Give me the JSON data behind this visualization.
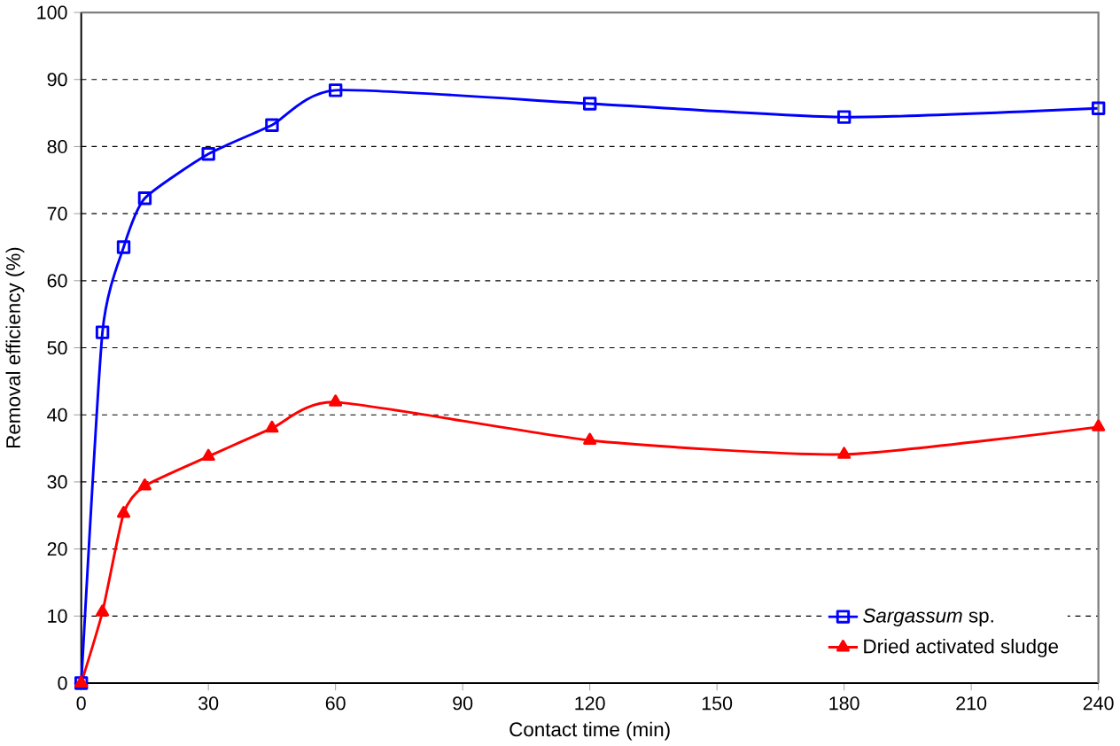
{
  "chart_data": {
    "type": "line",
    "xlabel": "Contact time (min)",
    "ylabel": "Removal efficiency (%)",
    "xlim": [
      0,
      240
    ],
    "xticks": [
      0,
      30,
      60,
      90,
      120,
      150,
      180,
      210,
      240
    ],
    "ylim": [
      0,
      100
    ],
    "yticks": [
      0,
      10,
      20,
      30,
      40,
      50,
      60,
      70,
      80,
      90,
      100
    ],
    "grid": "y",
    "legend": "bottom right",
    "x": [
      0,
      5,
      10,
      15,
      30,
      45,
      60,
      120,
      180,
      240
    ],
    "series": [
      {
        "name": "*Sargassum* sp.",
        "color": "#0000ff",
        "marker": "square",
        "values": [
          0,
          52.3,
          65,
          72.3,
          78.9,
          83.2,
          88.4,
          86.4,
          84.4,
          85.7
        ]
      },
      {
        "name": "Dried activated sludge",
        "color": "#ff0000",
        "marker": "triangle",
        "values": [
          0,
          10.6,
          25.3,
          29.4,
          33.8,
          38,
          41.9,
          36.2,
          34.1,
          38.2
        ]
      }
    ]
  }
}
